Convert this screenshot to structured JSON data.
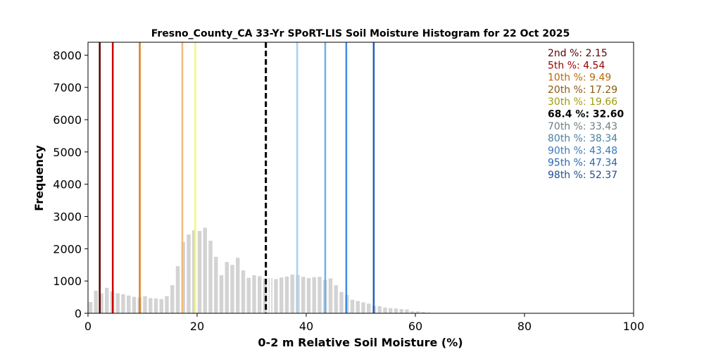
{
  "chart_data": {
    "type": "bar",
    "title": "Fresno_County_CA 33-Yr SPoRT-LIS Soil Moisture Histogram for 22 Oct 2025",
    "xlabel": "0-2 m Relative Soil Moisture (%)",
    "ylabel": "Frequency",
    "xlim": [
      0,
      100
    ],
    "ylim": [
      0,
      8400
    ],
    "xticks": [
      "0",
      "20",
      "40",
      "60",
      "80",
      "100"
    ],
    "yticks": [
      "0",
      "1000",
      "2000",
      "3000",
      "4000",
      "5000",
      "6000",
      "7000",
      "8000"
    ],
    "grid": false,
    "bar_color": "#d3d3d3",
    "bin_width": 1,
    "bins": [
      0,
      1,
      2,
      3,
      4,
      5,
      6,
      7,
      8,
      9,
      10,
      11,
      12,
      13,
      14,
      15,
      16,
      17,
      18,
      19,
      20,
      21,
      22,
      23,
      24,
      25,
      26,
      27,
      28,
      29,
      30,
      31,
      32,
      33,
      34,
      35,
      36,
      37,
      38,
      39,
      40,
      41,
      42,
      43,
      44,
      45,
      46,
      47,
      48,
      49,
      50,
      51,
      52,
      53,
      54,
      55,
      56,
      57,
      58,
      59,
      60,
      61,
      62,
      63
    ],
    "values": [
      350,
      700,
      620,
      790,
      680,
      620,
      590,
      550,
      510,
      490,
      530,
      470,
      460,
      440,
      530,
      870,
      1460,
      2210,
      2440,
      2570,
      2550,
      2650,
      2250,
      1750,
      1180,
      1590,
      1500,
      1720,
      1330,
      1100,
      1180,
      1150,
      1080,
      1090,
      1060,
      1110,
      1140,
      1200,
      1190,
      1130,
      1090,
      1120,
      1130,
      1030,
      1080,
      870,
      660,
      570,
      420,
      380,
      340,
      300,
      230,
      220,
      180,
      160,
      150,
      130,
      120,
      60,
      60,
      40,
      20,
      10
    ],
    "markers": [
      {
        "label": "2nd %",
        "value": "2.15",
        "x": 2.15,
        "color": "#5a0000",
        "style": "solid"
      },
      {
        "label": "5th %",
        "value": "4.54",
        "x": 4.54,
        "color": "#cc0000",
        "style": "solid"
      },
      {
        "label": "10th %",
        "value": "9.49",
        "x": 9.49,
        "color": "#e07b1a",
        "style": "solid"
      },
      {
        "label": "20th %",
        "value": "17.29",
        "x": 17.29,
        "color": "#f5b979",
        "style": "solid"
      },
      {
        "label": "30th %",
        "value": "19.66",
        "x": 19.66,
        "color": "#f5f57a",
        "style": "solid"
      },
      {
        "label": "68.4 %",
        "value": "32.60",
        "x": 32.6,
        "color": "#000000",
        "style": "dashed"
      },
      {
        "label": "70th %",
        "value": "33.43",
        "x": 33.43,
        "color": "#ffffff",
        "style": "solid"
      },
      {
        "label": "80th %",
        "value": "38.34",
        "x": 38.34,
        "color": "#a6d3f5",
        "style": "solid"
      },
      {
        "label": "90th %",
        "value": "43.48",
        "x": 43.48,
        "color": "#6bb0e8",
        "style": "solid"
      },
      {
        "label": "95th %",
        "value": "47.34",
        "x": 47.34,
        "color": "#3c8ee0",
        "style": "solid"
      },
      {
        "label": "98th %",
        "value": "52.37",
        "x": 52.37,
        "color": "#1f5fc0",
        "style": "solid"
      }
    ],
    "legend_placement": "top-right"
  },
  "legend_text_colors": [
    "#5a0000",
    "#a00000",
    "#b86a00",
    "#8a5a10",
    "#a09a10",
    "#000000",
    "#6f7d84",
    "#4d7ea0",
    "#3a78b8",
    "#2a66b0",
    "#1f4f90"
  ]
}
